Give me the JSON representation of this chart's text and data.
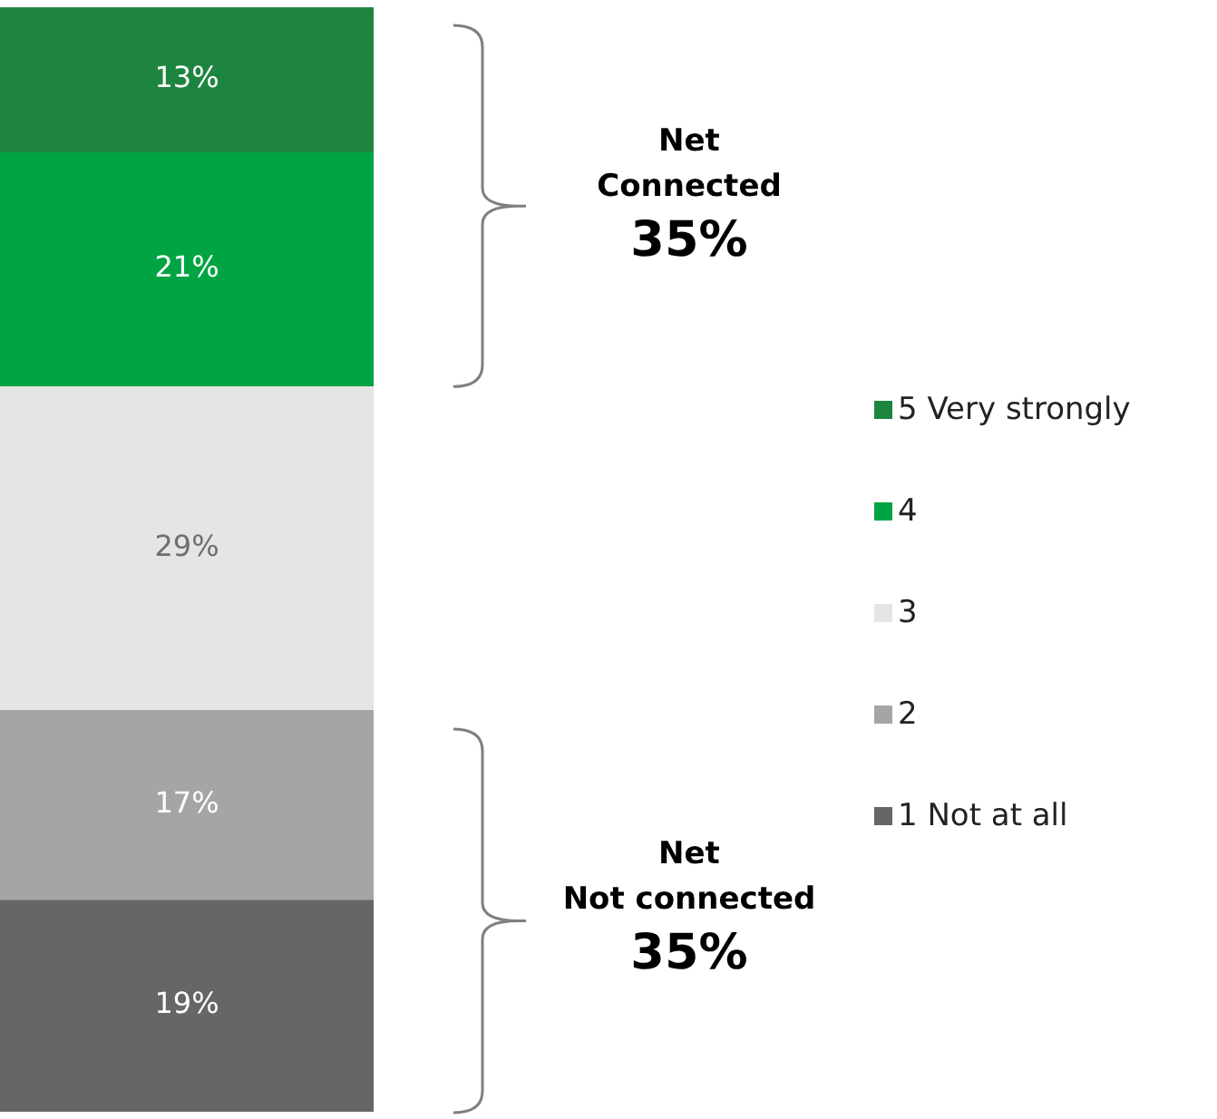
{
  "chart_data": {
    "type": "bar",
    "stacked": true,
    "legend": "right",
    "categories": [
      null
    ],
    "series": [
      {
        "name": "1 Not at all",
        "color": "#666666",
        "values": [
          19
        ],
        "value_labels": [
          "19%"
        ]
      },
      {
        "name": "2",
        "color": "#a5a5a5",
        "values": [
          17
        ],
        "value_labels": [
          "17%"
        ]
      },
      {
        "name": "3",
        "color": "#e5e5e5",
        "values": [
          29
        ],
        "value_labels": [
          "29%"
        ]
      },
      {
        "name": "4",
        "color": "#00a443",
        "values": [
          21
        ],
        "value_labels": [
          "21%"
        ]
      },
      {
        "name": "5 Very strongly",
        "color": "#1e8540",
        "values": [
          13
        ],
        "value_labels": [
          "13%"
        ]
      }
    ],
    "annotations": [
      "Net\nConnected\n35%",
      "Net\nNot connected\n35%"
    ]
  }
}
